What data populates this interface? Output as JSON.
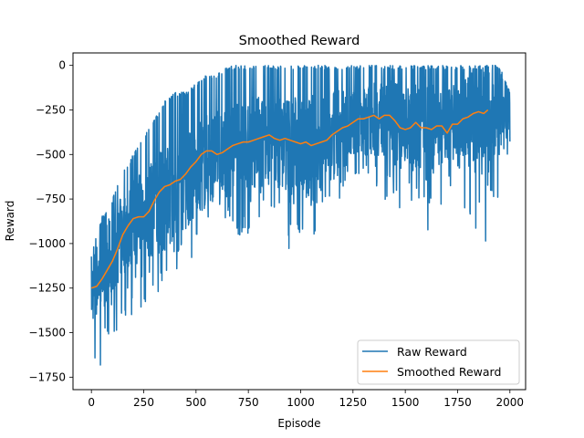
{
  "chart_data": {
    "type": "line",
    "title": "Smoothed Reward",
    "xlabel": "Episode",
    "ylabel": "Reward",
    "xlim": [
      -88,
      2075
    ],
    "ylim": [
      -1820,
      70
    ],
    "x_ticks": [
      0,
      250,
      500,
      750,
      1000,
      1250,
      1500,
      1750,
      2000
    ],
    "y_ticks": [
      0,
      -250,
      -500,
      -750,
      -1000,
      -1250,
      -1500,
      -1750
    ],
    "grid": false,
    "legend_position": "lower-right",
    "series": [
      {
        "name": "Raw Reward",
        "color": "#1f77b4",
        "x_range": [
          0,
          2000
        ],
        "point_count": 2001,
        "envelope": {
          "x": [
            0,
            50,
            100,
            150,
            200,
            250,
            300,
            350,
            400,
            450,
            500,
            550,
            600,
            650,
            700,
            750,
            800,
            850,
            900,
            950,
            1000,
            1050,
            1100,
            1150,
            1200,
            1250,
            1300,
            1350,
            1400,
            1450,
            1500,
            1550,
            1600,
            1650,
            1700,
            1750,
            1800,
            1850,
            1900,
            1950,
            2000
          ],
          "center": [
            -1260,
            -1150,
            -1050,
            -950,
            -880,
            -840,
            -800,
            -750,
            -700,
            -650,
            -600,
            -530,
            -500,
            -490,
            -470,
            -450,
            -430,
            -420,
            -430,
            -440,
            -450,
            -440,
            -430,
            -400,
            -360,
            -330,
            -310,
            -300,
            -290,
            -310,
            -340,
            -330,
            -350,
            -330,
            -360,
            -300,
            -290,
            -270,
            -250,
            -260,
            -280
          ],
          "low": [
            -1750,
            -1700,
            -1550,
            -1450,
            -1400,
            -1350,
            -1300,
            -1250,
            -1150,
            -1150,
            -1050,
            -1000,
            -950,
            -900,
            -950,
            -1000,
            -950,
            -900,
            -950,
            -1050,
            -950,
            -1000,
            -950,
            -900,
            -850,
            -650,
            -700,
            -750,
            -800,
            -850,
            -750,
            -900,
            -950,
            -800,
            -800,
            -750,
            -850,
            -1100,
            -1050,
            -800,
            -700
          ],
          "high": [
            -1050,
            -850,
            -750,
            -600,
            -500,
            -400,
            -300,
            -200,
            -150,
            -150,
            -100,
            -50,
            -50,
            0,
            0,
            0,
            0,
            0,
            0,
            0,
            0,
            0,
            0,
            0,
            0,
            0,
            0,
            0,
            0,
            0,
            0,
            0,
            0,
            0,
            0,
            0,
            0,
            0,
            0,
            0,
            -150
          ]
        }
      },
      {
        "name": "Smoothed Reward",
        "color": "#ff7f0e",
        "x": [
          0,
          25,
          50,
          75,
          100,
          125,
          150,
          175,
          200,
          225,
          250,
          275,
          300,
          325,
          350,
          375,
          400,
          425,
          450,
          475,
          500,
          525,
          550,
          575,
          600,
          625,
          650,
          675,
          700,
          725,
          750,
          775,
          800,
          825,
          850,
          875,
          900,
          925,
          950,
          975,
          1000,
          1025,
          1050,
          1075,
          1100,
          1125,
          1150,
          1175,
          1200,
          1225,
          1250,
          1275,
          1300,
          1325,
          1350,
          1375,
          1400,
          1425,
          1450,
          1475,
          1500,
          1525,
          1550,
          1575,
          1600,
          1625,
          1650,
          1675,
          1700,
          1725,
          1750,
          1775,
          1800,
          1825,
          1850,
          1875,
          1895
        ],
        "values": [
          -1250,
          -1240,
          -1200,
          -1150,
          -1100,
          -1030,
          -950,
          -900,
          -860,
          -850,
          -850,
          -820,
          -760,
          -710,
          -680,
          -670,
          -650,
          -640,
          -610,
          -570,
          -540,
          -500,
          -480,
          -480,
          -500,
          -490,
          -470,
          -450,
          -440,
          -430,
          -430,
          -420,
          -410,
          -400,
          -390,
          -410,
          -420,
          -410,
          -420,
          -430,
          -440,
          -430,
          -450,
          -440,
          -430,
          -420,
          -390,
          -370,
          -350,
          -340,
          -320,
          -300,
          -300,
          -290,
          -280,
          -300,
          -280,
          -280,
          -310,
          -350,
          -360,
          -350,
          -320,
          -350,
          -350,
          -360,
          -340,
          -340,
          -380,
          -330,
          -330,
          -300,
          -290,
          -270,
          -260,
          -270,
          -250
        ]
      }
    ]
  }
}
